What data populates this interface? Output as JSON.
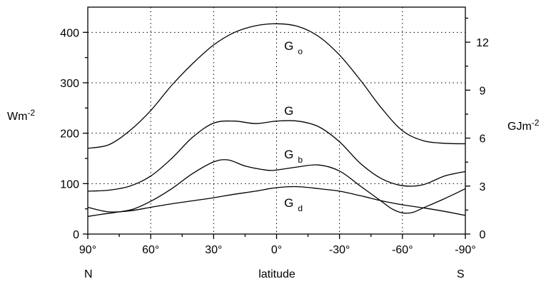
{
  "chart_data": {
    "type": "line",
    "title": "",
    "xlabel": "latitude",
    "x_ticks": [
      {
        "value": 90,
        "label": "90°"
      },
      {
        "value": 60,
        "label": "60°"
      },
      {
        "value": 30,
        "label": "30°"
      },
      {
        "value": 0,
        "label": "0°"
      },
      {
        "value": -30,
        "label": "-30°"
      },
      {
        "value": -60,
        "label": "-60°"
      },
      {
        "value": -90,
        "label": "-90°"
      }
    ],
    "xlim": [
      90,
      -90
    ],
    "x_end_labels": {
      "left": "N",
      "right": "S"
    },
    "ylabel_left": {
      "base": "Wm",
      "sup": "-2"
    },
    "ylabel_right": {
      "base": "GJm",
      "sup": "-2"
    },
    "ylim_left": [
      0,
      450
    ],
    "yticks_left": [
      0,
      100,
      200,
      300,
      400
    ],
    "ylim_right": [
      0,
      14.19
    ],
    "yticks_right": [
      0,
      3,
      6,
      9,
      12
    ],
    "grid": true,
    "series": [
      {
        "name": "G_o",
        "label_main": "G",
        "label_sub": "o",
        "x": [
          90,
          80,
          70,
          60,
          50,
          40,
          30,
          20,
          10,
          0,
          -10,
          -20,
          -30,
          -40,
          -50,
          -60,
          -70,
          -80,
          -90
        ],
        "values": [
          170,
          177,
          205,
          245,
          295,
          338,
          375,
          400,
          413,
          417,
          412,
          392,
          355,
          305,
          250,
          205,
          185,
          180,
          179
        ]
      },
      {
        "name": "G",
        "label_main": "G",
        "label_sub": "",
        "x": [
          90,
          80,
          70,
          60,
          50,
          40,
          30,
          20,
          10,
          0,
          -10,
          -20,
          -30,
          -40,
          -50,
          -60,
          -70,
          -80,
          -90
        ],
        "values": [
          85,
          87,
          95,
          115,
          150,
          192,
          220,
          224,
          219,
          224,
          224,
          213,
          183,
          140,
          110,
          96,
          98,
          115,
          124
        ]
      },
      {
        "name": "G_b",
        "label_main": "G",
        "label_sub": "b",
        "x": [
          90,
          82,
          75,
          68,
          60,
          50,
          40,
          30,
          23,
          15,
          5,
          0,
          -10,
          -20,
          -30,
          -40,
          -50,
          -55,
          -60,
          -65,
          -70,
          -80,
          -90
        ],
        "values": [
          35,
          40,
          44,
          50,
          65,
          90,
          120,
          143,
          147,
          135,
          127,
          127,
          133,
          137,
          125,
          95,
          65,
          50,
          42,
          43,
          52,
          70,
          90
        ]
      },
      {
        "name": "G_d",
        "label_main": "G",
        "label_sub": "d",
        "x": [
          90,
          80,
          70,
          60,
          50,
          40,
          30,
          20,
          10,
          0,
          -10,
          -20,
          -30,
          -40,
          -50,
          -60,
          -70,
          -80,
          -90
        ],
        "values": [
          53,
          44,
          46,
          53,
          60,
          66,
          72,
          79,
          85,
          92,
          94,
          90,
          85,
          76,
          66,
          58,
          52,
          45,
          37
        ]
      }
    ]
  }
}
